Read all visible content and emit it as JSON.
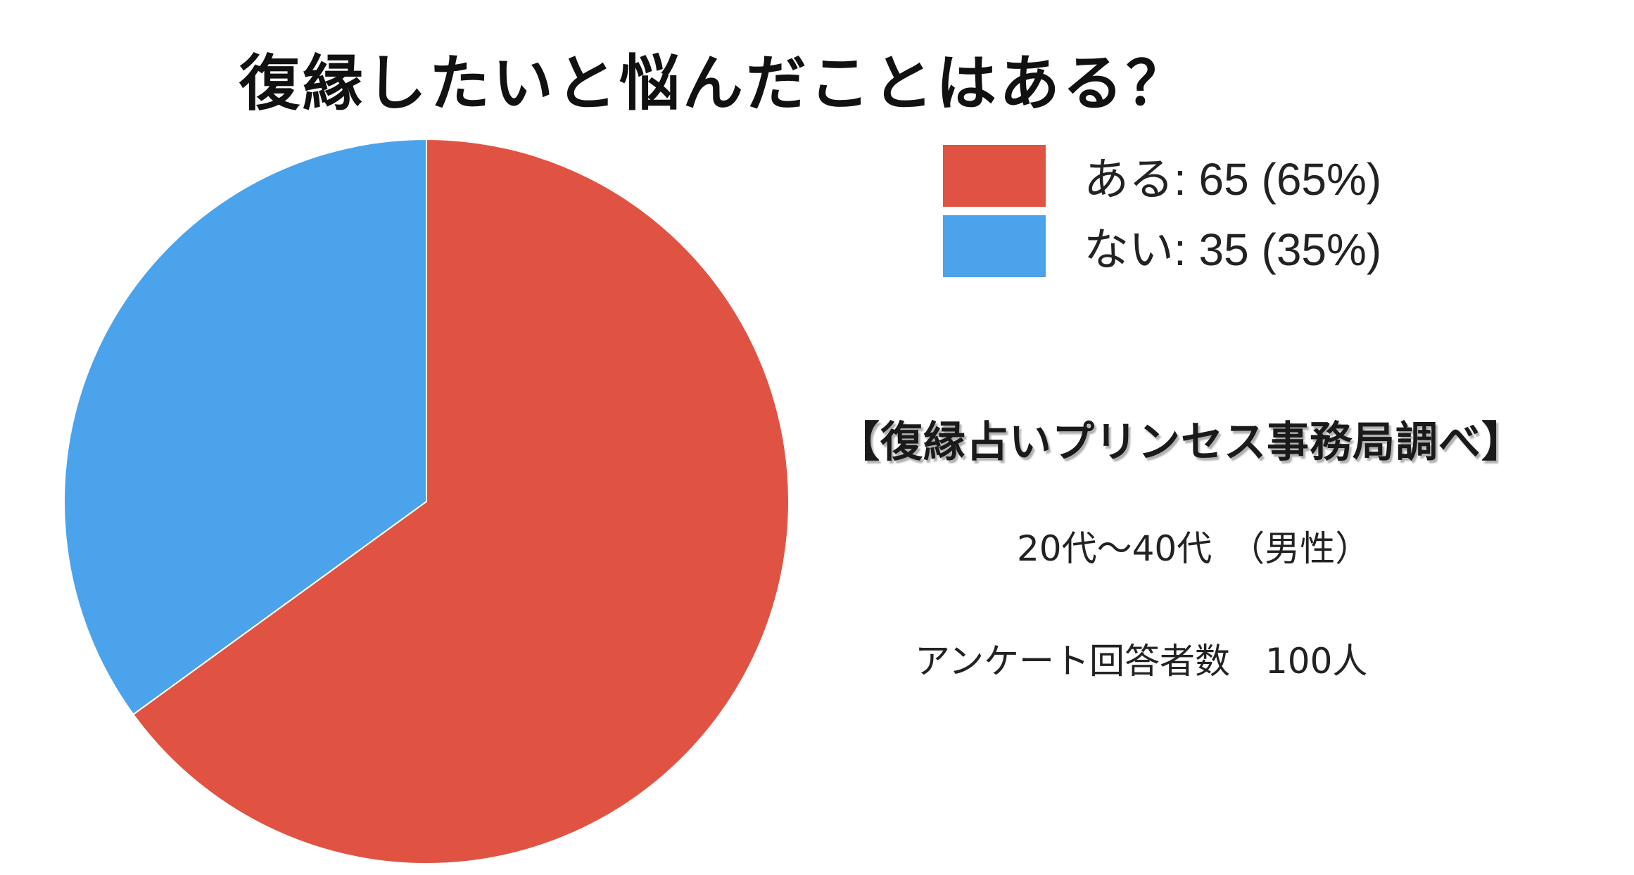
{
  "title": "復縁したいと悩んだことはある？",
  "chart_data": {
    "type": "pie",
    "categories": [
      "ある",
      "ない"
    ],
    "values": [
      65,
      35
    ],
    "percentages": [
      65,
      35
    ],
    "colors": [
      "#e05343",
      "#4ba3ec"
    ],
    "legend": [
      "ある: 65 (65%)",
      "ない: 35 (35%)"
    ],
    "legend_position": "top-right",
    "start_angle_deg": 0,
    "direction": "clockwise"
  },
  "source": "【復縁占いプリンセス事務局調べ】",
  "respondents": {
    "age_range": "20代〜40代　（男性）",
    "count_text": "アンケート回答者数　100人"
  }
}
